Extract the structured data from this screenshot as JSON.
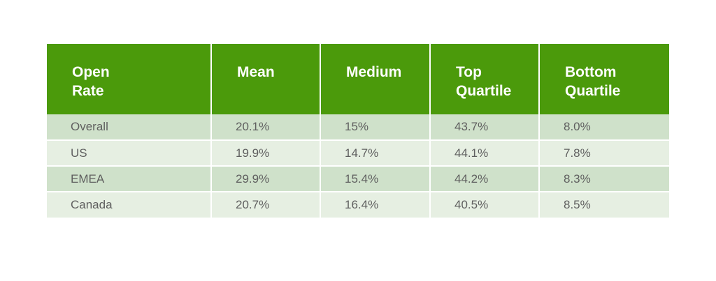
{
  "chart_data": {
    "type": "table",
    "columns": [
      [
        "Open",
        "Rate"
      ],
      [
        "Mean"
      ],
      [
        "Medium"
      ],
      [
        "Top",
        "Quartile"
      ],
      [
        "Bottom",
        "Quartile"
      ]
    ],
    "rows": [
      [
        "Overall",
        "20.1%",
        "15%",
        "43.7%",
        "8.0%"
      ],
      [
        "US",
        "19.9%",
        "14.7%",
        "44.1%",
        "7.8%"
      ],
      [
        "EMEA",
        "29.9%",
        "15.4%",
        "44.2%",
        "8.3%"
      ],
      [
        "Canada",
        "20.7%",
        "16.4%",
        "40.5%",
        "8.5%"
      ]
    ],
    "colors": {
      "header_bg": "#4b9a0b",
      "header_text": "#ffffff",
      "row_odd_bg": "#cfe1ca",
      "row_even_bg": "#e6efe2",
      "cell_text": "#5f5f5f"
    }
  }
}
